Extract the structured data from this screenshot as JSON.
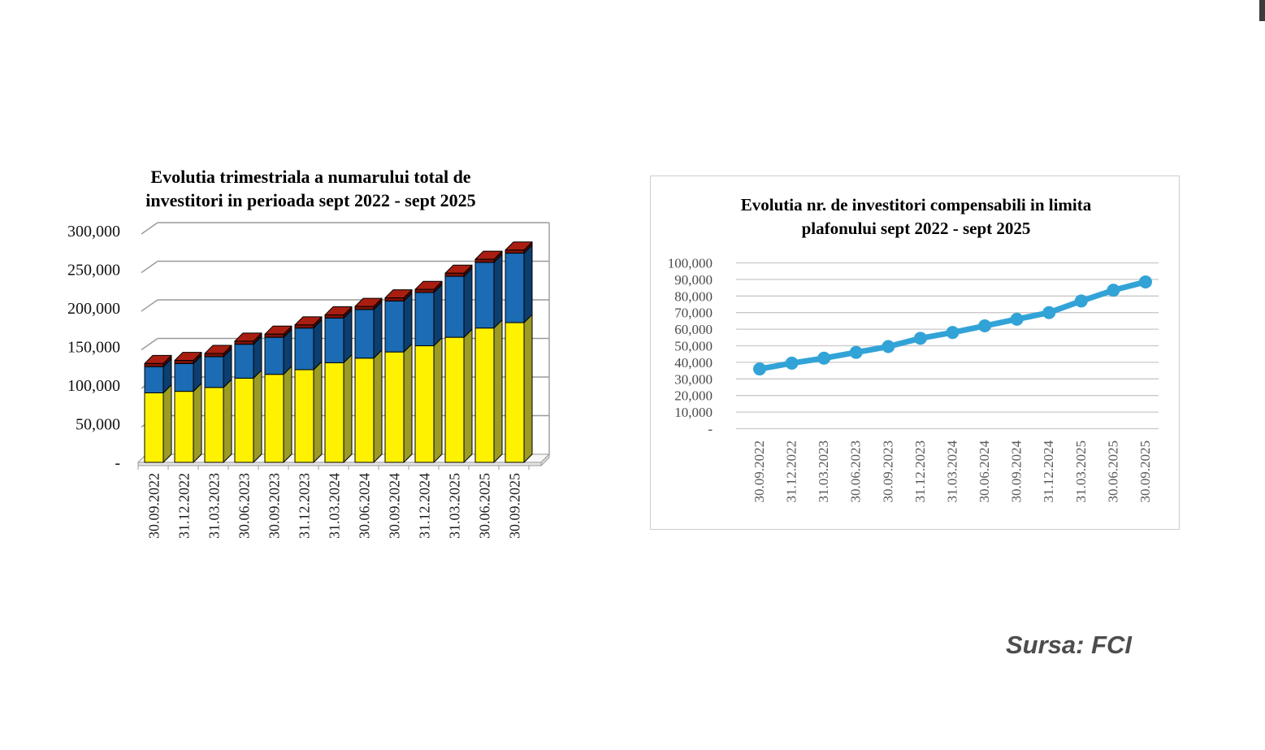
{
  "page": {
    "background": "#ffffff",
    "source_note": "Sursa: FCI"
  },
  "charts": {
    "left": {
      "title_line1": "Evolutia trimestriala a numarului total de",
      "title_line2": "investitori in perioada sept 2022 - sept 2025"
    },
    "right": {
      "title_line1": "Evolutia nr. de investitori compensabili in limita",
      "title_line2": "plafonului sept 2022 - sept 2025"
    }
  },
  "chart_data": [
    {
      "id": "total-investors",
      "type": "bar",
      "variant": "3d-stacked-column",
      "title": "Evolutia trimestriala a numarului total de investitori in perioada sept 2022 - sept 2025",
      "categories": [
        "30.09.2022",
        "31.12.2022",
        "31.03.2023",
        "30.06.2023",
        "30.09.2023",
        "31.12.2023",
        "31.03.2024",
        "30.06.2024",
        "30.09.2024",
        "31.12.2024",
        "31.03.2025",
        "30.06.2025",
        "30.09.2025"
      ],
      "series": [
        {
          "name": "yellow-bottom-segment",
          "color": "#FFF200",
          "values": [
            90000,
            92000,
            97000,
            109000,
            114000,
            120000,
            129000,
            135000,
            143000,
            151000,
            162000,
            174000,
            181000
          ]
        },
        {
          "name": "blue-middle-segment",
          "color": "#1B6BB5",
          "values": [
            34000,
            36000,
            40000,
            44000,
            48000,
            54000,
            58000,
            63000,
            66000,
            69000,
            79000,
            85000,
            90000
          ]
        },
        {
          "name": "dark-red-top-segment",
          "color": "#7E1205",
          "values": [
            4000,
            4000,
            4000,
            4000,
            4000,
            4000,
            4000,
            4000,
            4000,
            4000,
            4000,
            4000,
            4000
          ]
        }
      ],
      "totals": [
        128000,
        132000,
        141000,
        157000,
        166000,
        178000,
        191000,
        202000,
        213000,
        224000,
        245000,
        263000,
        275000
      ],
      "ylim": [
        0,
        300000
      ],
      "y_ticks": [
        0,
        50000,
        100000,
        150000,
        200000,
        250000,
        300000
      ],
      "y_tick_labels": [
        "-",
        "50,000",
        "100,000",
        "150,000",
        "200,000",
        "250,000",
        "300,000"
      ],
      "grid": true,
      "legend": false
    },
    {
      "id": "compensable-investors-within-ceiling",
      "type": "line",
      "title": "Evolutia nr. de investitori compensabili in limita plafonului sept 2022 - sept 2025",
      "categories": [
        "30.09.2022",
        "31.12.2022",
        "31.03.2023",
        "30.06.2023",
        "30.09.2023",
        "31.12.2023",
        "31.03.2024",
        "30.06.2024",
        "30.09.2024",
        "31.12.2024",
        "31.03.2025",
        "30.06.2025",
        "30.09.2025"
      ],
      "series": [
        {
          "name": "investitori-compensabili-in-limita-plafonului",
          "color": "#32A3D7",
          "marker": "circle",
          "values": [
            36000,
            39500,
            42500,
            46000,
            49500,
            54500,
            58000,
            62000,
            66000,
            70000,
            77000,
            83500,
            88500
          ]
        }
      ],
      "ylim": [
        0,
        100000
      ],
      "y_ticks": [
        0,
        10000,
        20000,
        30000,
        40000,
        50000,
        60000,
        70000,
        80000,
        90000,
        100000
      ],
      "y_tick_labels": [
        "-",
        "10,000",
        "20,000",
        "30,000",
        "40,000",
        "50,000",
        "60,000",
        "70,000",
        "80,000",
        "90,000",
        "100,000"
      ],
      "grid": true,
      "legend": false
    }
  ]
}
